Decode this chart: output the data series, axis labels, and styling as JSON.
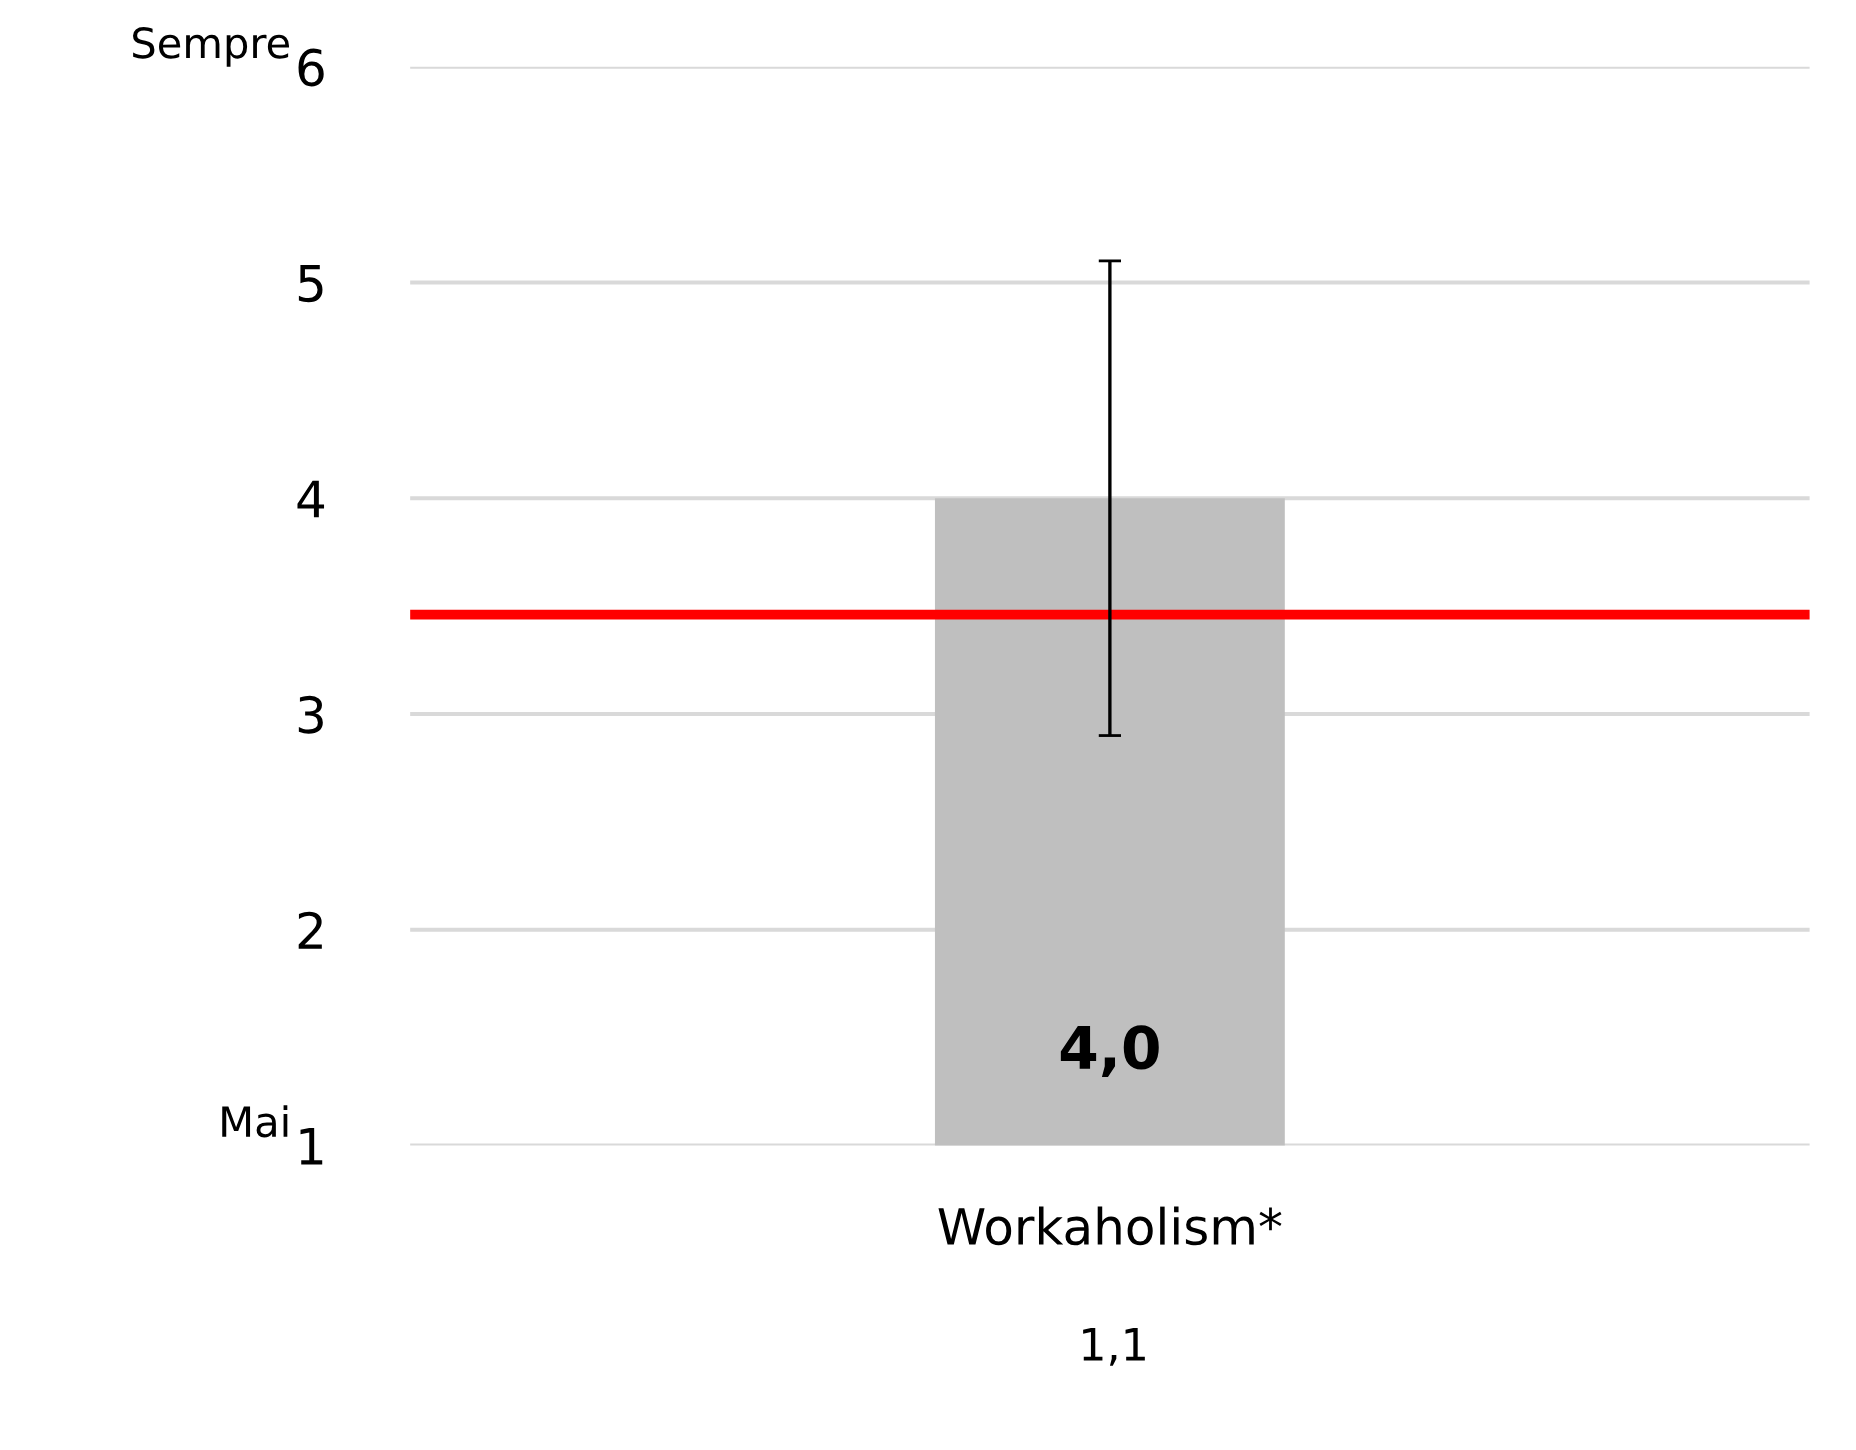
{
  "chart_data": {
    "type": "bar",
    "categories": [
      "Workaholism*"
    ],
    "values": [
      4.0
    ],
    "value_labels": [
      "4,0"
    ],
    "color": "#bfbfbf",
    "errors": [
      1.1
    ],
    "ylim": [
      1,
      6
    ],
    "yticks": [
      1,
      2,
      3,
      4,
      5,
      6
    ],
    "grid": "y",
    "ref_lines": [
      {
        "axis": "y",
        "value": 3.46,
        "color": "#ff0000",
        "line_style": "solid"
      }
    ],
    "annotations": [
      "Sempre",
      "Mai",
      "1,1"
    ]
  }
}
